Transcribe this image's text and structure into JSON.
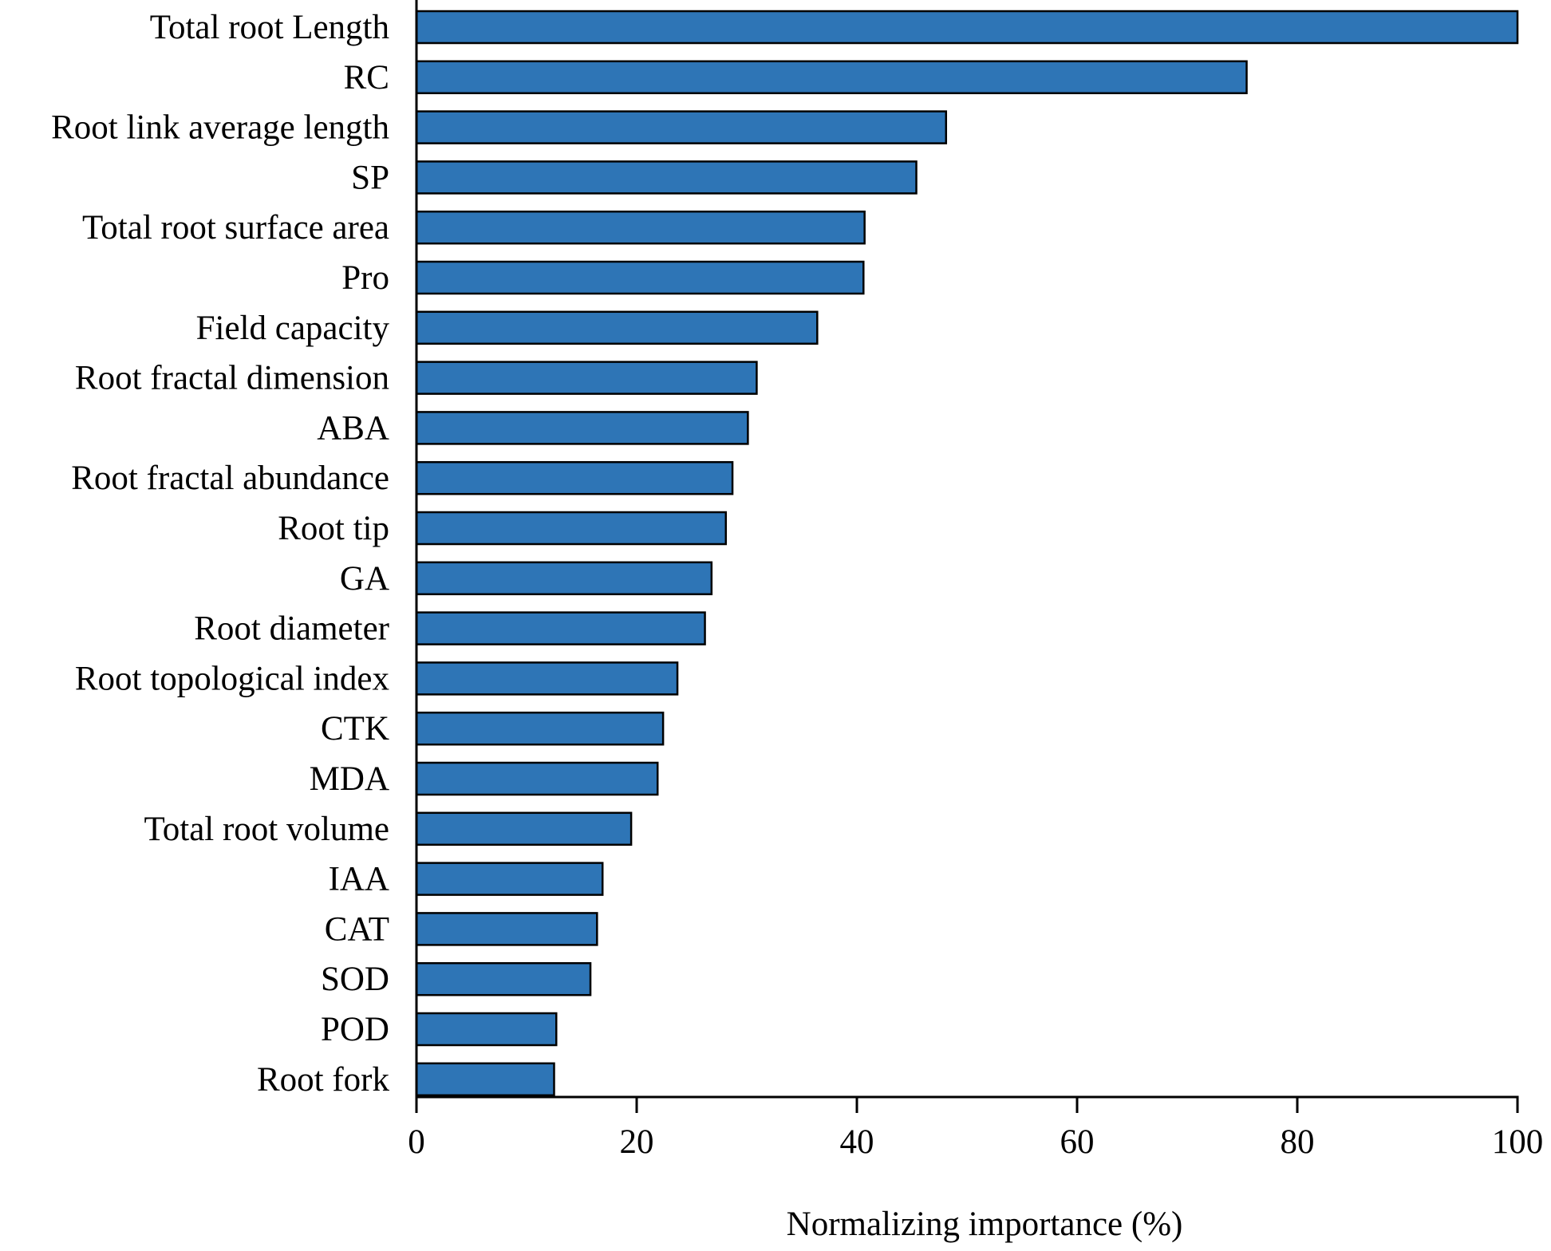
{
  "chart_data": {
    "type": "bar",
    "orientation": "horizontal",
    "title": "",
    "xlabel": "Normalizing importance (%)",
    "ylabel": "",
    "xlim": [
      0,
      100
    ],
    "xticks": [
      0,
      20,
      40,
      60,
      80,
      100
    ],
    "xtick_labels": [
      "0",
      "20",
      "40",
      "60",
      "80",
      "100"
    ],
    "grid": false,
    "bar_color": "#2e75b6",
    "bar_edge_color": "#000000",
    "categories": [
      "Total root Length",
      "RC",
      "Root link average length",
      "SP",
      "Total root surface area",
      "Pro",
      "Field capacity",
      "Root fractal dimension",
      "ABA",
      "Root fractal abundance",
      "Root tip",
      "GA",
      "Root diameter",
      "Root topological index",
      "CTK",
      "MDA",
      "Total root volume",
      "IAA",
      "CAT",
      "SOD",
      "POD",
      "Root fork"
    ],
    "values": [
      100,
      75.4,
      48.1,
      45.4,
      40.7,
      40.6,
      36.4,
      30.9,
      30.1,
      28.7,
      28.1,
      26.8,
      26.2,
      23.7,
      22.4,
      21.9,
      19.5,
      16.9,
      16.4,
      15.8,
      12.7,
      12.5
    ]
  }
}
